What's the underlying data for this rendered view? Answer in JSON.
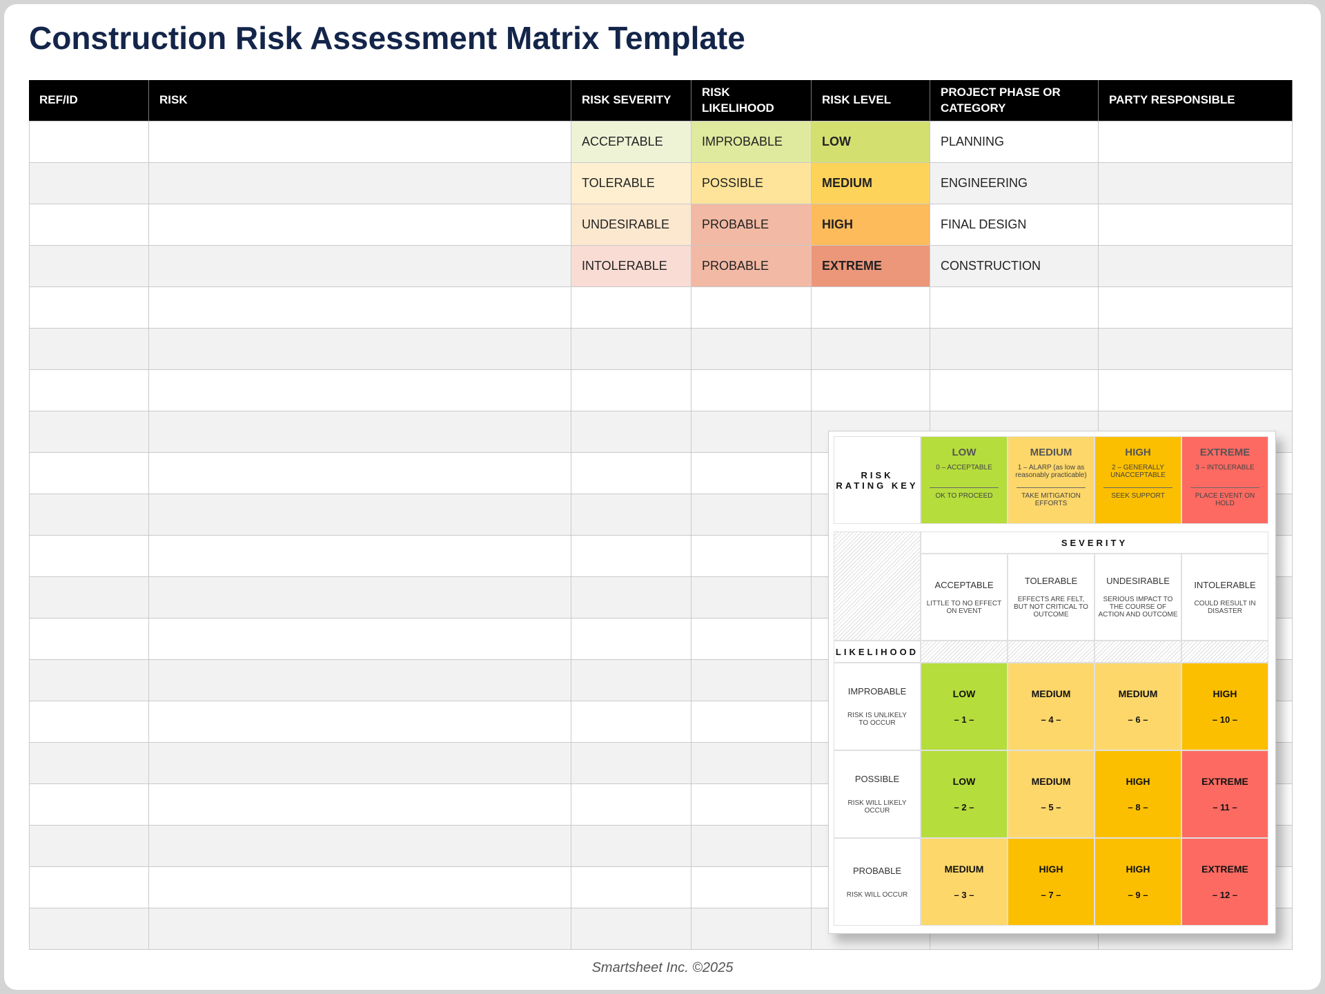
{
  "title": "Construction Risk Assessment Matrix Template",
  "table": {
    "headers": [
      "REF/ID",
      "RISK",
      "RISK SEVERITY",
      "RISK LIKELIHOOD",
      "RISK LEVEL",
      "PROJECT PHASE  OR CATEGORY",
      "PARTY RESPONSIBLE"
    ],
    "rows": [
      {
        "severity": "ACCEPTABLE",
        "likelihood": "IMPROBABLE",
        "level": "LOW",
        "phase": "PLANNING"
      },
      {
        "severity": "TOLERABLE",
        "likelihood": "POSSIBLE",
        "level": "MEDIUM",
        "phase": "ENGINEERING"
      },
      {
        "severity": "UNDESIRABLE",
        "likelihood": "PROBABLE",
        "level": "HIGH",
        "phase": "FINAL DESIGN"
      },
      {
        "severity": "INTOLERABLE",
        "likelihood": "PROBABLE",
        "level": "EXTREME",
        "phase": "CONSTRUCTION"
      }
    ]
  },
  "key": {
    "label": "RISK RATING KEY",
    "levels": [
      {
        "name": "LOW",
        "rating": "0 – ACCEPTABLE",
        "action": "OK TO PROCEED"
      },
      {
        "name": "MEDIUM",
        "rating": "1 – ALARP (as low as reasonably practicable)",
        "action": "TAKE MITIGATION EFFORTS"
      },
      {
        "name": "HIGH",
        "rating": "2 – GENERALLY UNACCEPTABLE",
        "action": "SEEK SUPPORT"
      },
      {
        "name": "EXTREME",
        "rating": "3 – INTOLERABLE",
        "action": "PLACE EVENT ON HOLD"
      }
    ]
  },
  "matrix": {
    "severity_label": "SEVERITY",
    "likelihood_label": "LIKELIHOOD",
    "severities": [
      {
        "name": "ACCEPTABLE",
        "desc": "LITTLE TO NO EFFECT ON EVENT"
      },
      {
        "name": "TOLERABLE",
        "desc": "EFFECTS ARE FELT, BUT NOT CRITICAL TO OUTCOME"
      },
      {
        "name": "UNDESIRABLE",
        "desc": "SERIOUS IMPACT TO THE COURSE OF ACTION AND OUTCOME"
      },
      {
        "name": "INTOLERABLE",
        "desc": "COULD RESULT IN DISASTER"
      }
    ],
    "likelihoods": [
      {
        "name": "IMPROBABLE",
        "desc": "RISK IS UNLIKELY TO OCCUR"
      },
      {
        "name": "POSSIBLE",
        "desc": "RISK WILL LIKELY OCCUR"
      },
      {
        "name": "PROBABLE",
        "desc": "RISK WILL OCCUR"
      }
    ],
    "cells": [
      [
        {
          "level": "LOW",
          "score": "– 1 –"
        },
        {
          "level": "MEDIUM",
          "score": "– 4 –"
        },
        {
          "level": "MEDIUM",
          "score": "– 6 –"
        },
        {
          "level": "HIGH",
          "score": "– 10 –"
        }
      ],
      [
        {
          "level": "LOW",
          "score": "– 2 –"
        },
        {
          "level": "MEDIUM",
          "score": "– 5 –"
        },
        {
          "level": "HIGH",
          "score": "– 8 –"
        },
        {
          "level": "EXTREME",
          "score": "– 11 –"
        }
      ],
      [
        {
          "level": "MEDIUM",
          "score": "– 3 –"
        },
        {
          "level": "HIGH",
          "score": "– 7 –"
        },
        {
          "level": "HIGH",
          "score": "– 9 –"
        },
        {
          "level": "EXTREME",
          "score": "– 12 –"
        }
      ]
    ]
  },
  "footer": "Smartsheet Inc. ©2025"
}
